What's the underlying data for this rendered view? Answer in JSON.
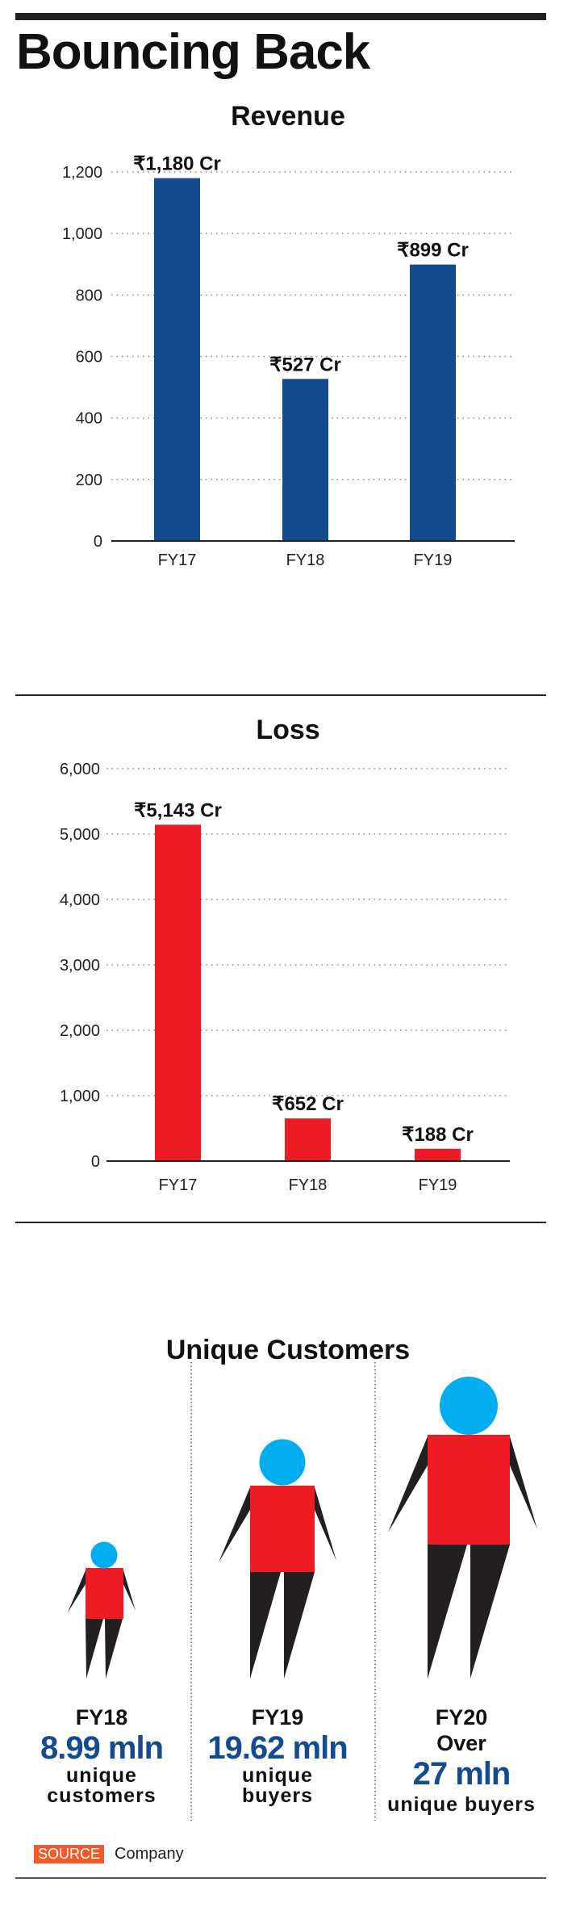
{
  "title": "Bouncing Back",
  "colors": {
    "revenue_bar": "#134b8e",
    "loss_bar": "#ed1c24",
    "head": "#00aeef",
    "body": "#ed1c24",
    "limbs": "#231f20",
    "value_text": "#134b8e",
    "source_badge": "#f15a29"
  },
  "chart_data": [
    {
      "type": "bar",
      "title": "Revenue",
      "categories": [
        "FY17",
        "FY18",
        "FY19"
      ],
      "values": [
        1180,
        527,
        899
      ],
      "data_labels": [
        "₹1,180 Cr",
        "₹527 Cr",
        "₹899 Cr"
      ],
      "ylim": [
        0,
        1200
      ],
      "yticks": [
        0,
        200,
        400,
        600,
        800,
        1000,
        1200
      ],
      "ytick_labels": [
        "0",
        "200",
        "400",
        "600",
        "800",
        "1,000",
        "1,200"
      ],
      "grid": "dotted horizontal",
      "xlabel": "",
      "ylabel": ""
    },
    {
      "type": "bar",
      "title": "Loss",
      "categories": [
        "FY17",
        "FY18",
        "FY19"
      ],
      "values": [
        5143,
        652,
        188
      ],
      "data_labels": [
        "₹5,143 Cr",
        "₹652 Cr",
        "₹188 Cr"
      ],
      "ylim": [
        0,
        6000
      ],
      "yticks": [
        0,
        1000,
        2000,
        3000,
        4000,
        5000,
        6000
      ],
      "ytick_labels": [
        "0",
        "1,000",
        "2,000",
        "3,000",
        "4,000",
        "5,000",
        "6,000"
      ],
      "grid": "dotted horizontal",
      "xlabel": "",
      "ylabel": ""
    }
  ],
  "customers": {
    "title": "Unique Customers",
    "columns": [
      {
        "year": "FY18",
        "prefix": "",
        "value": "8.99 mln",
        "line1": "unique",
        "line2": "customers",
        "icon": "person-figure-small"
      },
      {
        "year": "FY19",
        "prefix": "",
        "value": "19.62 mln",
        "line1": "unique",
        "line2": "buyers",
        "icon": "person-figure-medium"
      },
      {
        "year": "FY20",
        "prefix": "Over",
        "value": "27 mln",
        "line1": "unique buyers",
        "line2": "",
        "icon": "person-figure-large"
      }
    ]
  },
  "source": {
    "label": "SOURCE",
    "text": "Company"
  }
}
